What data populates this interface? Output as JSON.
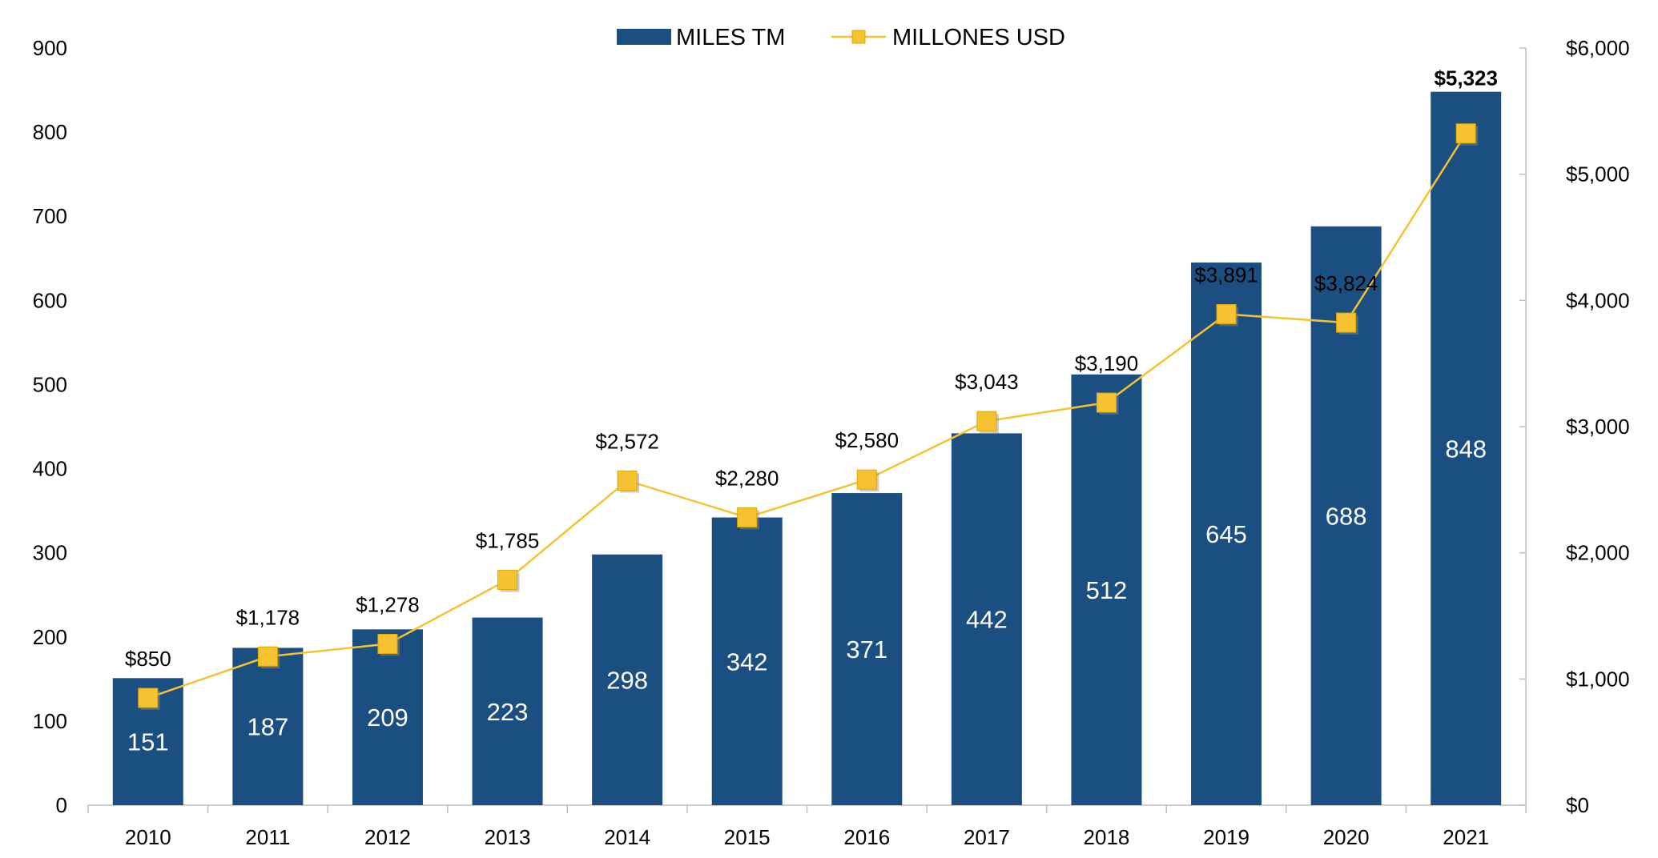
{
  "chart_data": {
    "type": "bar",
    "categories": [
      "2010",
      "2011",
      "2012",
      "2013",
      "2014",
      "2015",
      "2016",
      "2017",
      "2018",
      "2019",
      "2020",
      "2021"
    ],
    "series": [
      {
        "name": "MILES TM",
        "type": "bar",
        "axis": "left",
        "color": "#1b4f82",
        "values": [
          151,
          187,
          209,
          223,
          298,
          342,
          371,
          442,
          512,
          645,
          688,
          848
        ],
        "labels": [
          "151",
          "187",
          "209",
          "223",
          "298",
          "342",
          "371",
          "442",
          "512",
          "645",
          "688",
          "848"
        ]
      },
      {
        "name": "MILLONES USD",
        "type": "line",
        "axis": "right",
        "color": "#f5c232",
        "values": [
          850,
          1178,
          1278,
          1785,
          2572,
          2280,
          2580,
          3043,
          3190,
          3891,
          3824,
          5323
        ],
        "labels": [
          "$850",
          "$1,178",
          "$1,278",
          "$1,785",
          "$2,572",
          "$2,280",
          "$2,580",
          "$3,043",
          "$3,190",
          "$3,891",
          "$3,824",
          "$5,323"
        ]
      }
    ],
    "y_left": {
      "ylim": [
        0,
        900
      ],
      "ticks": [
        "0",
        "100",
        "200",
        "300",
        "400",
        "500",
        "600",
        "700",
        "800",
        "900"
      ]
    },
    "y_right": {
      "ylim": [
        0,
        6000
      ],
      "ticks": [
        "$0",
        "$1,000",
        "$2,000",
        "$3,000",
        "$4,000",
        "$5,000",
        "$6,000"
      ]
    },
    "legend": {
      "position": "top-center",
      "items": [
        "MILES TM",
        "MILLONES USD"
      ]
    },
    "grid": false,
    "title": "",
    "xlabel": "",
    "ylabel": ""
  }
}
